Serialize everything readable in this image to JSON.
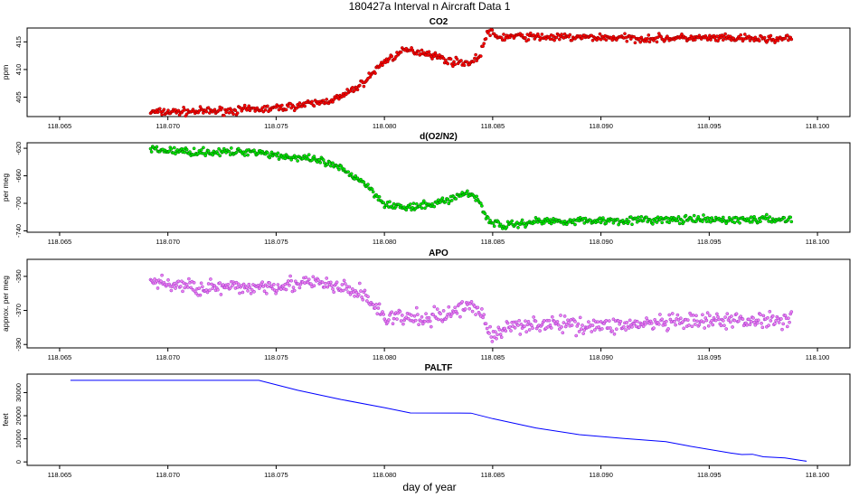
{
  "title": "180427a   Interval n Aircraft Data 1",
  "xlabel": "day of year",
  "chart_data": [
    {
      "type": "scatter",
      "title": "CO2",
      "ylabel": "ppm",
      "color": "#ff0000",
      "edge_color": "#8b0000",
      "xlim": [
        118.0635,
        118.1015
      ],
      "ylim": [
        401.5,
        417.5
      ],
      "xticks": [
        "118.065",
        "118.070",
        "118.075",
        "118.080",
        "118.085",
        "118.090",
        "118.095",
        "118.100"
      ],
      "yticks": [
        "405",
        "410",
        "415"
      ],
      "series": [
        {
          "x": [
            118.0692,
            118.071,
            118.073,
            118.075,
            118.077,
            118.078,
            118.079,
            118.08,
            118.081,
            118.082,
            118.083,
            118.084,
            118.0844,
            118.0848,
            118.0852,
            118.086,
            118.088,
            118.09,
            118.092,
            118.094,
            118.096,
            118.098,
            118.0988
          ],
          "y": [
            402.3,
            402.4,
            402.6,
            403.0,
            404.0,
            405.0,
            407.5,
            411.5,
            413.5,
            413.0,
            411.5,
            411.2,
            412.5,
            417.0,
            415.8,
            416.0,
            415.8,
            415.8,
            415.6,
            415.7,
            415.6,
            415.5,
            415.6
          ],
          "noise": 0.5
        }
      ]
    },
    {
      "type": "scatter",
      "title": "d(O2/N2)",
      "ylabel": "per meg",
      "color": "#00ee00",
      "edge_color": "#006400",
      "xlim": [
        118.0635,
        118.1015
      ],
      "ylim": [
        -742,
        -612
      ],
      "xticks": [
        "118.065",
        "118.070",
        "118.075",
        "118.080",
        "118.085",
        "118.090",
        "118.095",
        "118.100"
      ],
      "yticks": [
        "-620",
        "-660",
        "-700",
        "-740"
      ],
      "series": [
        {
          "x": [
            118.0692,
            118.071,
            118.073,
            118.074,
            118.075,
            118.077,
            118.078,
            118.079,
            118.08,
            118.081,
            118.082,
            118.083,
            118.0838,
            118.0843,
            118.0848,
            118.0855,
            118.087,
            118.09,
            118.093,
            118.096,
            118.0988
          ],
          "y": [
            -622,
            -625,
            -626,
            -624,
            -630,
            -638,
            -650,
            -668,
            -700,
            -707,
            -703,
            -694,
            -685,
            -692,
            -725,
            -733,
            -726,
            -725,
            -724,
            -724,
            -723
          ],
          "noise": 4
        }
      ]
    },
    {
      "type": "scatter",
      "title": "APO",
      "ylabel": "approx. per meg",
      "color": "#ee82ee",
      "edge_color": "#9932cc",
      "xlim": [
        118.0635,
        118.1015
      ],
      "ylim": [
        -392,
        -340
      ],
      "xticks": [
        "118.065",
        "118.070",
        "118.075",
        "118.080",
        "118.085",
        "118.090",
        "118.095",
        "118.100"
      ],
      "yticks": [
        "-350",
        "-370",
        "-390"
      ],
      "series": [
        {
          "x": [
            118.0692,
            118.071,
            118.073,
            118.075,
            118.077,
            118.079,
            118.08,
            118.082,
            118.083,
            118.084,
            118.0845,
            118.085,
            118.086,
            118.088,
            118.09,
            118.092,
            118.094,
            118.096,
            118.0988
          ],
          "y": [
            -353,
            -356,
            -357,
            -355,
            -354,
            -360,
            -374,
            -375,
            -372,
            -366,
            -372,
            -386,
            -378,
            -378,
            -379,
            -378,
            -377,
            -376,
            -375
          ],
          "noise": 3.5
        }
      ]
    },
    {
      "type": "line",
      "title": "PALTF",
      "ylabel": "feet",
      "color": "#0000ff",
      "xlim": [
        118.0635,
        118.1015
      ],
      "ylim": [
        -1500,
        38000
      ],
      "xticks": [
        "118.065",
        "118.070",
        "118.075",
        "118.080",
        "118.085",
        "118.090",
        "118.095",
        "118.100"
      ],
      "yticks": [
        "0",
        "10000",
        "20000",
        "30000"
      ],
      "series": [
        {
          "x": [
            118.0655,
            118.07,
            118.0742,
            118.076,
            118.078,
            118.08,
            118.0812,
            118.084,
            118.085,
            118.087,
            118.089,
            118.091,
            118.093,
            118.094,
            118.096,
            118.0965,
            118.097,
            118.0975,
            118.0985,
            118.0995
          ],
          "y": [
            35300,
            35300,
            35300,
            31000,
            27000,
            23500,
            21200,
            21100,
            18700,
            14700,
            11800,
            10200,
            8800,
            7000,
            3800,
            3200,
            3300,
            2200,
            1700,
            300
          ]
        }
      ]
    }
  ]
}
